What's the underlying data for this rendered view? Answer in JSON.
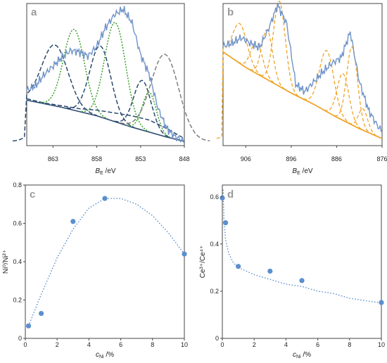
{
  "colors": {
    "spectrum": "#6f93c8",
    "fit_dark": "#2b4a6f",
    "fit_green": "#39a02b",
    "fit_gray": "#777777",
    "fit_orange": "#f0a428",
    "marker": "#5b8fce",
    "trend": "#4b84c9"
  },
  "chart_data": [
    {
      "panel": "a",
      "type": "line",
      "xlabel": "B",
      "xlabel_sub": "E",
      "xlabel_unit": " /eV",
      "x_reversed": true,
      "xlim": [
        866,
        848
      ],
      "xticks": [
        863,
        858,
        853,
        848
      ],
      "ylim": [
        0,
        1
      ],
      "grid": false,
      "series": [
        {
          "role": "spectrum",
          "x": [
            866,
            865,
            864,
            863,
            862,
            861,
            860,
            859,
            858,
            857,
            856,
            855,
            854,
            853,
            852,
            851,
            850,
            849,
            848
          ],
          "y": [
            0.39,
            0.42,
            0.5,
            0.56,
            0.62,
            0.67,
            0.66,
            0.63,
            0.7,
            0.83,
            0.92,
            0.96,
            0.87,
            0.64,
            0.5,
            0.26,
            0.12,
            0.06,
            0.03
          ]
        },
        {
          "role": "envelope",
          "style": "dashed-dark",
          "x": [
            866,
            864,
            862,
            860,
            858,
            856,
            854,
            852,
            850,
            848
          ],
          "y": [
            0.33,
            0.3,
            0.28,
            0.26,
            0.25,
            0.23,
            0.21,
            0.18,
            0.12,
            0.05
          ]
        },
        {
          "role": "baseline",
          "style": "solid-dark",
          "x": [
            866,
            862,
            858,
            854,
            850,
            848
          ],
          "y": [
            0.32,
            0.27,
            0.21,
            0.13,
            0.06,
            0.03
          ]
        },
        {
          "role": "peak",
          "style": "dashed-dark",
          "center": 862.8,
          "height": 0.43,
          "width": 1.5
        },
        {
          "role": "peak",
          "style": "dashed-dark",
          "center": 857.6,
          "height": 0.5,
          "width": 1.2
        },
        {
          "role": "peak",
          "style": "dashed-dark",
          "center": 852.8,
          "height": 0.35,
          "width": 1.0
        },
        {
          "role": "peak",
          "style": "dotted-green",
          "center": 860.6,
          "height": 0.57,
          "width": 1.2
        },
        {
          "role": "peak",
          "style": "dotted-green",
          "center": 855.9,
          "height": 0.7,
          "width": 1.2
        },
        {
          "role": "peak",
          "style": "dotted-green",
          "center": 852.0,
          "height": 0.28,
          "width": 0.8
        },
        {
          "role": "peak",
          "style": "dashed-gray",
          "center": 850.2,
          "height": 0.58,
          "width": 1.6
        }
      ]
    },
    {
      "panel": "b",
      "type": "line",
      "xlabel": "B",
      "xlabel_sub": "E",
      "xlabel_unit": " /eV",
      "x_reversed": true,
      "xlim": [
        911,
        876
      ],
      "xticks": [
        906,
        896,
        886,
        876
      ],
      "ylim": [
        0,
        1
      ],
      "grid": false,
      "series": [
        {
          "role": "spectrum",
          "x": [
            911,
            909,
            907,
            905,
            903,
            901,
            899,
            897,
            895,
            893,
            891,
            889,
            887,
            885,
            883,
            881,
            879,
            877,
            876
          ],
          "y": [
            0.7,
            0.72,
            0.76,
            0.72,
            0.69,
            0.82,
            0.99,
            0.86,
            0.43,
            0.38,
            0.45,
            0.52,
            0.58,
            0.62,
            0.8,
            0.45,
            0.25,
            0.14,
            0.1
          ]
        },
        {
          "role": "baseline",
          "style": "solid-orange",
          "x": [
            911,
            906,
            901,
            896,
            891,
            886,
            881,
            876
          ],
          "y": [
            0.66,
            0.55,
            0.46,
            0.37,
            0.29,
            0.2,
            0.12,
            0.05
          ]
        },
        {
          "role": "peak",
          "style": "dashed-orange",
          "center": 907.3,
          "height": 0.28,
          "width": 1.6
        },
        {
          "role": "peak",
          "style": "dashed-orange",
          "center": 903.6,
          "height": 0.22,
          "width": 1.3
        },
        {
          "role": "peak",
          "style": "dashed-orange",
          "center": 901.3,
          "height": 0.35,
          "width": 1.2
        },
        {
          "role": "peak",
          "style": "dashed-orange",
          "center": 898.6,
          "height": 0.6,
          "width": 1.3
        },
        {
          "role": "peak",
          "style": "dashed-orange",
          "center": 888.2,
          "height": 0.43,
          "width": 1.6
        },
        {
          "role": "peak",
          "style": "dashed-orange",
          "center": 884.6,
          "height": 0.33,
          "width": 1.3
        },
        {
          "role": "peak",
          "style": "dashed-orange",
          "center": 882.6,
          "height": 0.55,
          "width": 1.2
        },
        {
          "role": "peak",
          "style": "dashed-orange",
          "center": 880.2,
          "height": 0.15,
          "width": 1.0
        }
      ]
    },
    {
      "panel": "c",
      "type": "scatter",
      "xlabel": "c",
      "xlabel_sub": "Ni",
      "xlabel_unit": " /%",
      "ylabel": "Ni⁰/Ni²⁺",
      "xlim": [
        0,
        10
      ],
      "ylim": [
        0,
        0.8
      ],
      "xticks": [
        "0",
        "2",
        "4",
        "6",
        "8",
        "10"
      ],
      "yticks": [
        "0",
        "0.2",
        "0.4",
        "0.6",
        "0.8"
      ],
      "grid": false,
      "points": {
        "x": [
          0.2,
          1.0,
          3.0,
          5.0,
          10.0
        ],
        "y": [
          0.065,
          0.13,
          0.61,
          0.73,
          0.44
        ]
      },
      "trend": {
        "type": "polynomial",
        "style": "dotted",
        "x": [
          0.2,
          1,
          2,
          3,
          4,
          5,
          6,
          7,
          8,
          9,
          10
        ],
        "y": [
          0.065,
          0.23,
          0.42,
          0.57,
          0.68,
          0.73,
          0.73,
          0.7,
          0.64,
          0.55,
          0.44
        ]
      }
    },
    {
      "panel": "d",
      "type": "scatter",
      "xlabel": "c",
      "xlabel_sub": "Ni",
      "xlabel_unit": " /%",
      "ylabel": "Ce³⁺/Ce⁴⁺",
      "xlim": [
        0,
        10
      ],
      "ylim": [
        0,
        0.65
      ],
      "xticks": [
        "0",
        "2",
        "4",
        "6",
        "8",
        "10"
      ],
      "yticks": [
        "0",
        "0.2",
        "0.4",
        "0.6"
      ],
      "grid": false,
      "points": {
        "x": [
          0.0,
          0.2,
          1.0,
          3.0,
          5.0,
          10.0
        ],
        "y": [
          0.595,
          0.49,
          0.305,
          0.285,
          0.245,
          0.152
        ]
      },
      "trend": {
        "type": "power",
        "style": "dotted",
        "x": [
          0.05,
          0.1,
          0.2,
          0.4,
          0.7,
          1,
          2,
          3,
          4,
          5,
          6,
          7,
          8,
          9,
          10
        ],
        "y": [
          0.63,
          0.5,
          0.42,
          0.36,
          0.32,
          0.3,
          0.27,
          0.25,
          0.23,
          0.22,
          0.2,
          0.19,
          0.17,
          0.16,
          0.15
        ]
      }
    }
  ]
}
